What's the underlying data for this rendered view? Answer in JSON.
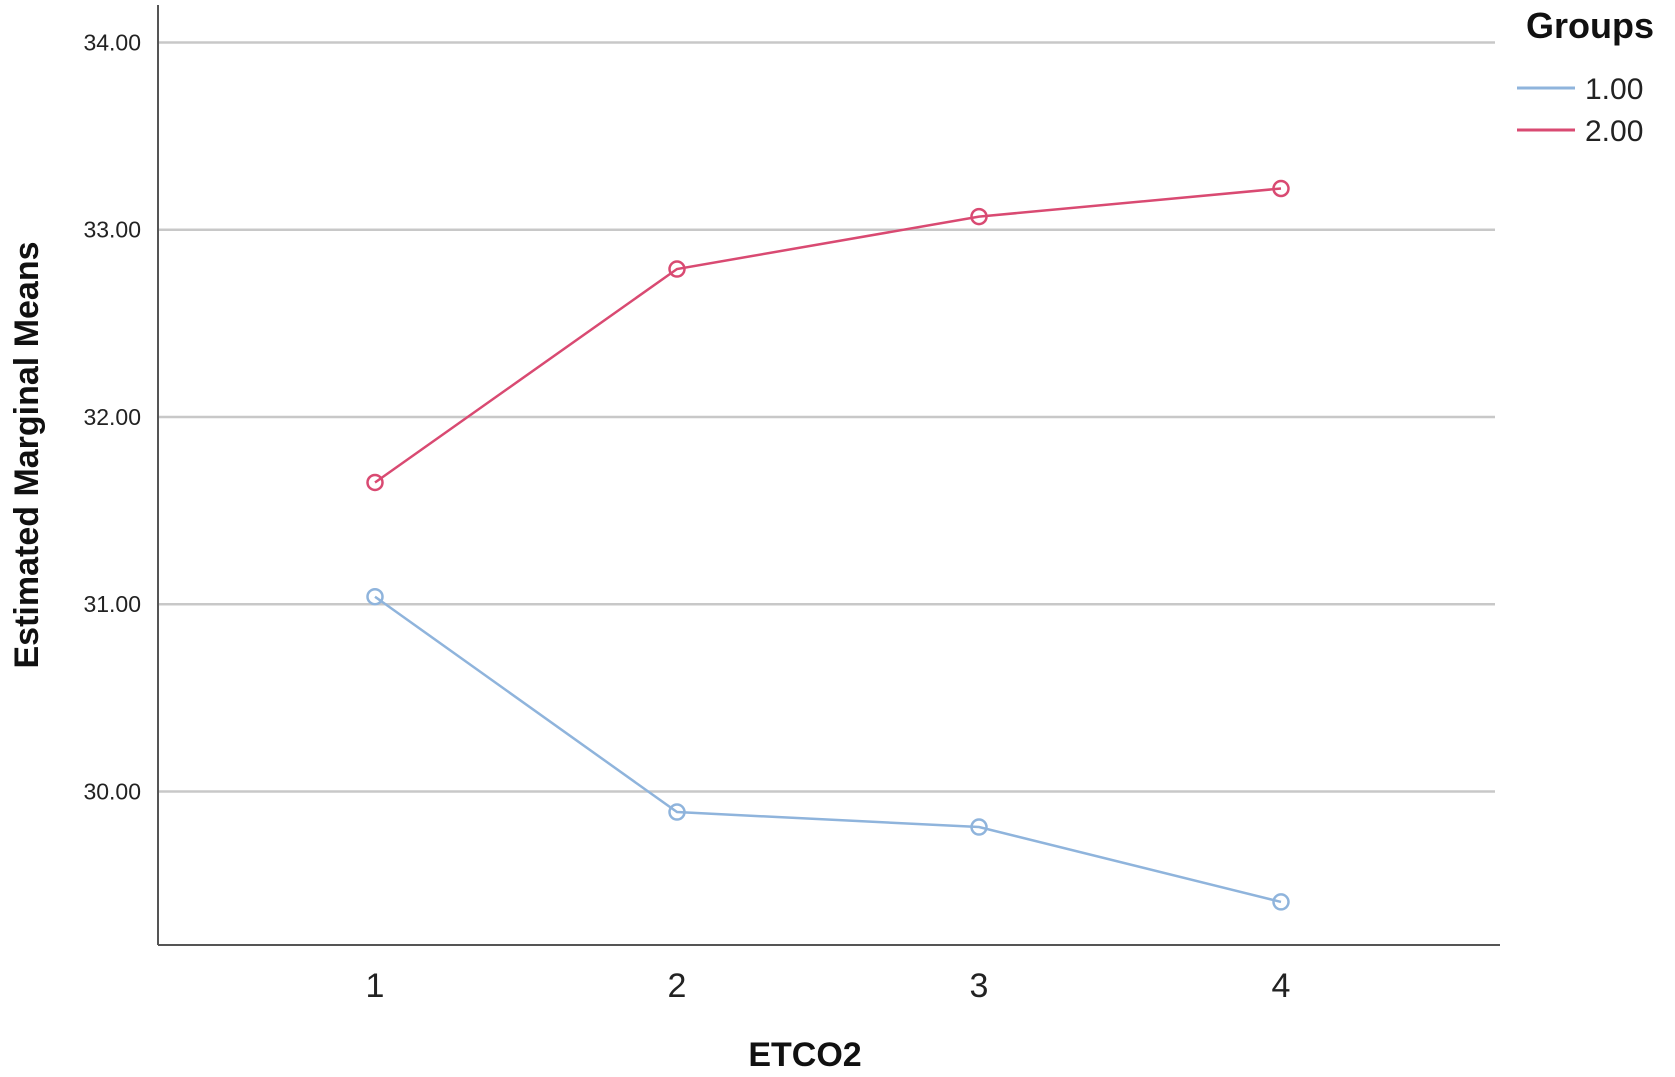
{
  "chart_data": {
    "type": "line",
    "xlabel": "ETCO2",
    "ylabel": "Estimated Marginal Means",
    "categories": [
      "1",
      "2",
      "3",
      "4"
    ],
    "ylim": [
      29.18,
      34.2
    ],
    "yticks": [
      30.0,
      31.0,
      32.0,
      33.0,
      34.0
    ],
    "ytick_labels": [
      "30.00",
      "31.00",
      "32.00",
      "33.00",
      "34.00"
    ],
    "grid": "horizontal",
    "legend": {
      "title": "Groups",
      "placement": "top-right"
    },
    "series": [
      {
        "name": "1.00",
        "color": "#8fb4dc",
        "values": [
          31.04,
          29.89,
          29.81,
          29.41
        ]
      },
      {
        "name": "2.00",
        "color": "#d94a72",
        "values": [
          31.65,
          32.79,
          33.07,
          33.22
        ]
      }
    ]
  }
}
